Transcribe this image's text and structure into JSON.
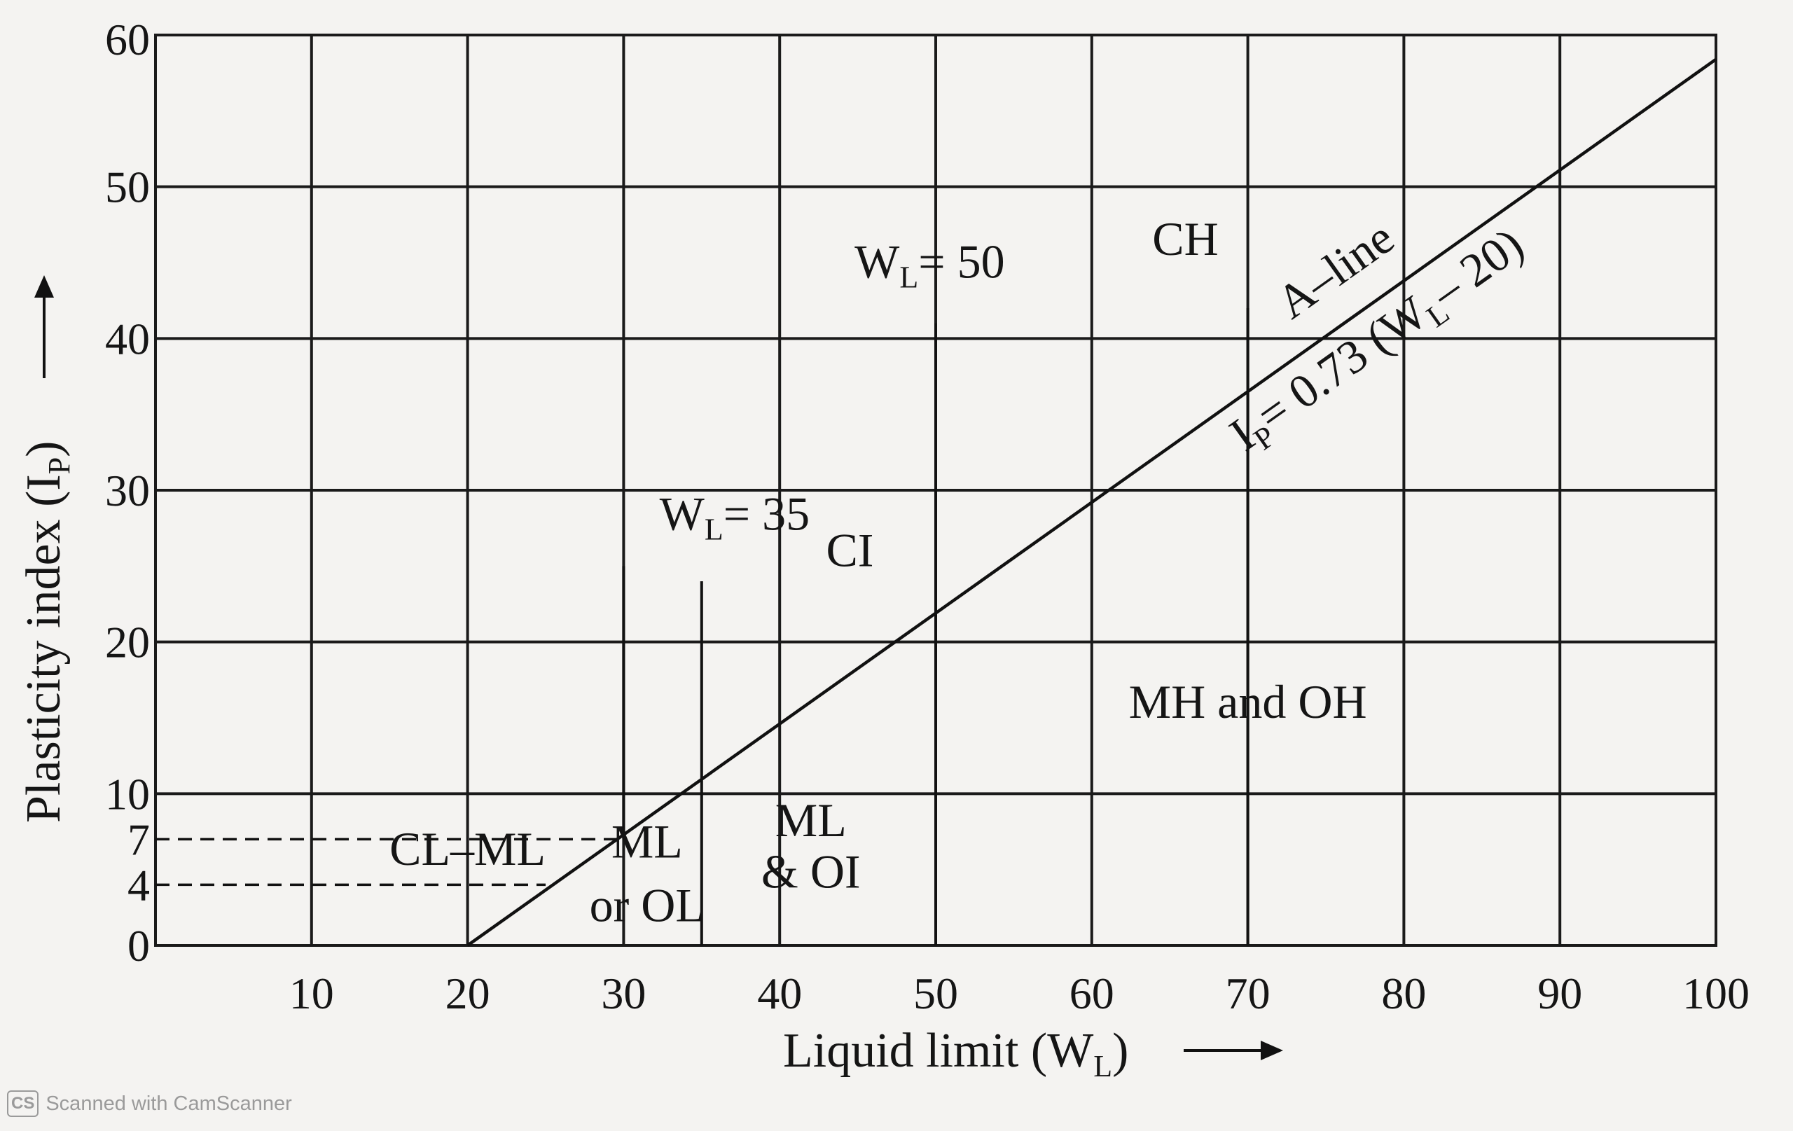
{
  "chart_data": {
    "type": "line",
    "title": "",
    "xlabel": "Liquid limit (W",
    "xlabel_sub": "L",
    "xlabel_suffix": ")",
    "ylabel": "Plasticity index (I",
    "ylabel_sub": "P",
    "ylabel_suffix": ")",
    "xlim": [
      0,
      100
    ],
    "ylim": [
      0,
      60
    ],
    "x_ticks": [
      10,
      20,
      30,
      40,
      50,
      60,
      70,
      80,
      90,
      100
    ],
    "y_ticks": [
      0,
      4,
      7,
      10,
      20,
      30,
      40,
      50,
      60
    ],
    "grid": true,
    "series": [
      {
        "name": "A-line",
        "equation": "I = 0.73 (W – 20)",
        "x": [
          20,
          100
        ],
        "y": [
          0,
          58.4
        ]
      }
    ],
    "boundaries": [
      {
        "label": "W = 35",
        "label_main": "W",
        "label_sub": "L",
        "label_rest": "= 35",
        "x": 35,
        "y": [
          0,
          24
        ]
      },
      {
        "label": "W = 50",
        "label_main": "W",
        "label_sub": "L",
        "label_rest": "= 50",
        "x": 50,
        "y": [
          0,
          41
        ]
      },
      {
        "x": 30,
        "y": [
          7,
          25
        ]
      },
      {
        "x": 70,
        "y": [
          0,
          42
        ]
      }
    ],
    "dashed_lines": [
      {
        "y": 7,
        "x": [
          0,
          30
        ]
      },
      {
        "y": 4,
        "x": [
          0,
          25
        ]
      }
    ],
    "regions": [
      {
        "label": "CH",
        "x": 66,
        "y": 45.5
      },
      {
        "label": "CI",
        "x": 44.5,
        "y": 25
      },
      {
        "label": "MH and OH",
        "x": 70,
        "y": 15
      },
      {
        "label": "ML",
        "x": 42,
        "y": 7.2
      },
      {
        "label": "& OI",
        "x": 42,
        "y": 3.8
      },
      {
        "label": "ML",
        "x": 31.5,
        "y": 5.8
      },
      {
        "label": "or OL",
        "x": 31.5,
        "y": 1.6
      },
      {
        "label": "CL–ML",
        "x": 20,
        "y": 5.3
      }
    ],
    "annotations": {
      "aline_label": "A–line",
      "equation_main": "I",
      "equation_sub1": "P",
      "equation_mid": "= 0.73 (W",
      "equation_sub2": "L",
      "equation_end": "– 20)"
    }
  },
  "watermark": {
    "logo": "CS",
    "text": "Scanned with CamScanner"
  }
}
